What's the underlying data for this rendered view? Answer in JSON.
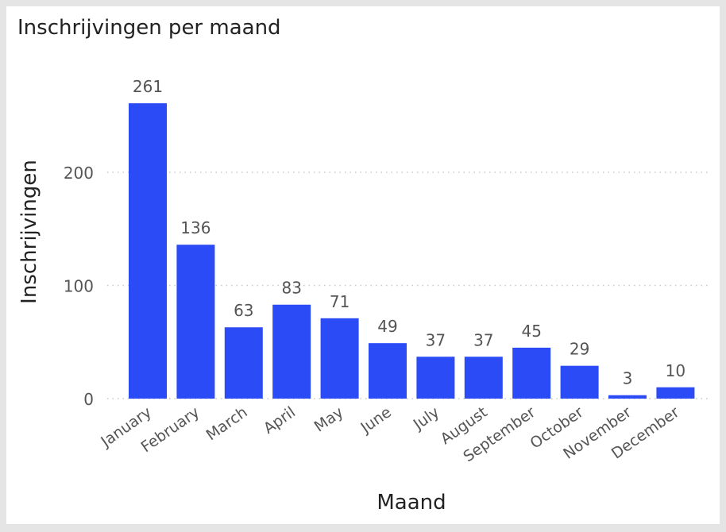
{
  "chart_data": {
    "type": "bar",
    "title": "Inschrijvingen per maand",
    "xlabel": "Maand",
    "ylabel": "Inschrijvingen",
    "categories": [
      "January",
      "February",
      "March",
      "April",
      "May",
      "June",
      "July",
      "August",
      "September",
      "October",
      "November",
      "December"
    ],
    "values": [
      261,
      136,
      63,
      83,
      71,
      49,
      37,
      37,
      45,
      29,
      3,
      10
    ],
    "yticks": [
      0,
      100,
      200
    ],
    "ylim": [
      0,
      275
    ],
    "grid": true,
    "bar_color": "#2a4bf5"
  }
}
